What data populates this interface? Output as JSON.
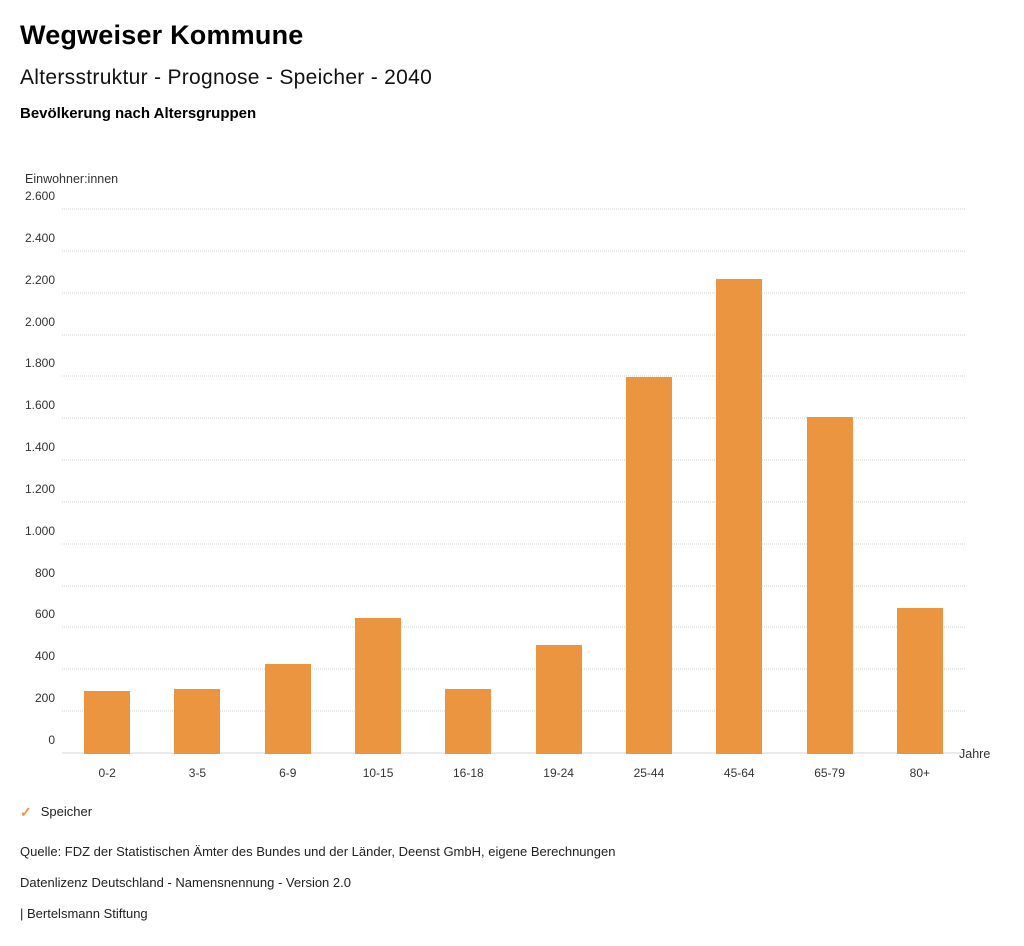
{
  "header": {
    "title": "Wegweiser Kommune",
    "subtitle": "Altersstruktur - Prognose - Speicher - 2040",
    "section": "Bevölkerung nach Altersgruppen"
  },
  "chart_data": {
    "type": "bar",
    "title": "Bevölkerung nach Altersgruppen",
    "categories": [
      "0-2",
      "3-5",
      "6-9",
      "10-15",
      "16-18",
      "19-24",
      "25-44",
      "45-64",
      "65-79",
      "80+"
    ],
    "series": [
      {
        "name": "Speicher",
        "values": [
          300,
          310,
          430,
          650,
          310,
          520,
          1800,
          2270,
          1610,
          700
        ]
      }
    ],
    "xlabel": "Jahre",
    "ylabel": "Einwohner:innen",
    "ylim": [
      0,
      2600
    ],
    "ytick_step": 200,
    "grid": "horizontal-dotted",
    "legend_position": "bottom-left",
    "bar_color": "#EC9540"
  },
  "legend": {
    "label": "Speicher",
    "check_color": "#EC9540"
  },
  "footer": {
    "source": "Quelle: FDZ der Statistischen Ämter des Bundes und der Länder, Deenst GmbH, eigene Berechnungen",
    "license": "Datenlizenz Deutschland - Namensnennung - Version 2.0",
    "attribution": "| Bertelsmann Stiftung"
  }
}
